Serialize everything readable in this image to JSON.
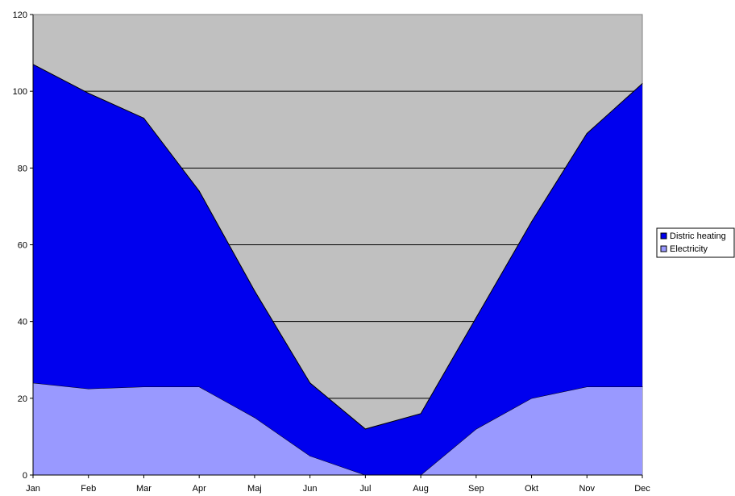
{
  "chart_data": {
    "type": "area",
    "stacked": true,
    "categories": [
      "Jan",
      "Feb",
      "Mar",
      "Apr",
      "Maj",
      "Jun",
      "Jul",
      "Aug",
      "Sep",
      "Okt",
      "Nov",
      "Dec"
    ],
    "series": [
      {
        "name": "Electricity",
        "values": [
          24,
          22.5,
          23,
          23,
          15,
          5,
          0,
          0,
          12,
          20,
          23,
          23
        ],
        "color": "#9999ff"
      },
      {
        "name": "Distric heating",
        "values": [
          83,
          77,
          70,
          51,
          33,
          19,
          12,
          16,
          29,
          46,
          66,
          79
        ],
        "color": "#0000ee"
      }
    ],
    "ylim": [
      0,
      120
    ],
    "yticks": [
      "0",
      "20",
      "40",
      "60",
      "80",
      "100",
      "120"
    ],
    "title": "",
    "xlabel": "",
    "ylabel": "",
    "grid": true,
    "legend_position": "right",
    "legend_order": [
      "Distric heating",
      "Electricity"
    ],
    "plot_background": "#c0c0c0",
    "gridline_color": "#000000"
  }
}
